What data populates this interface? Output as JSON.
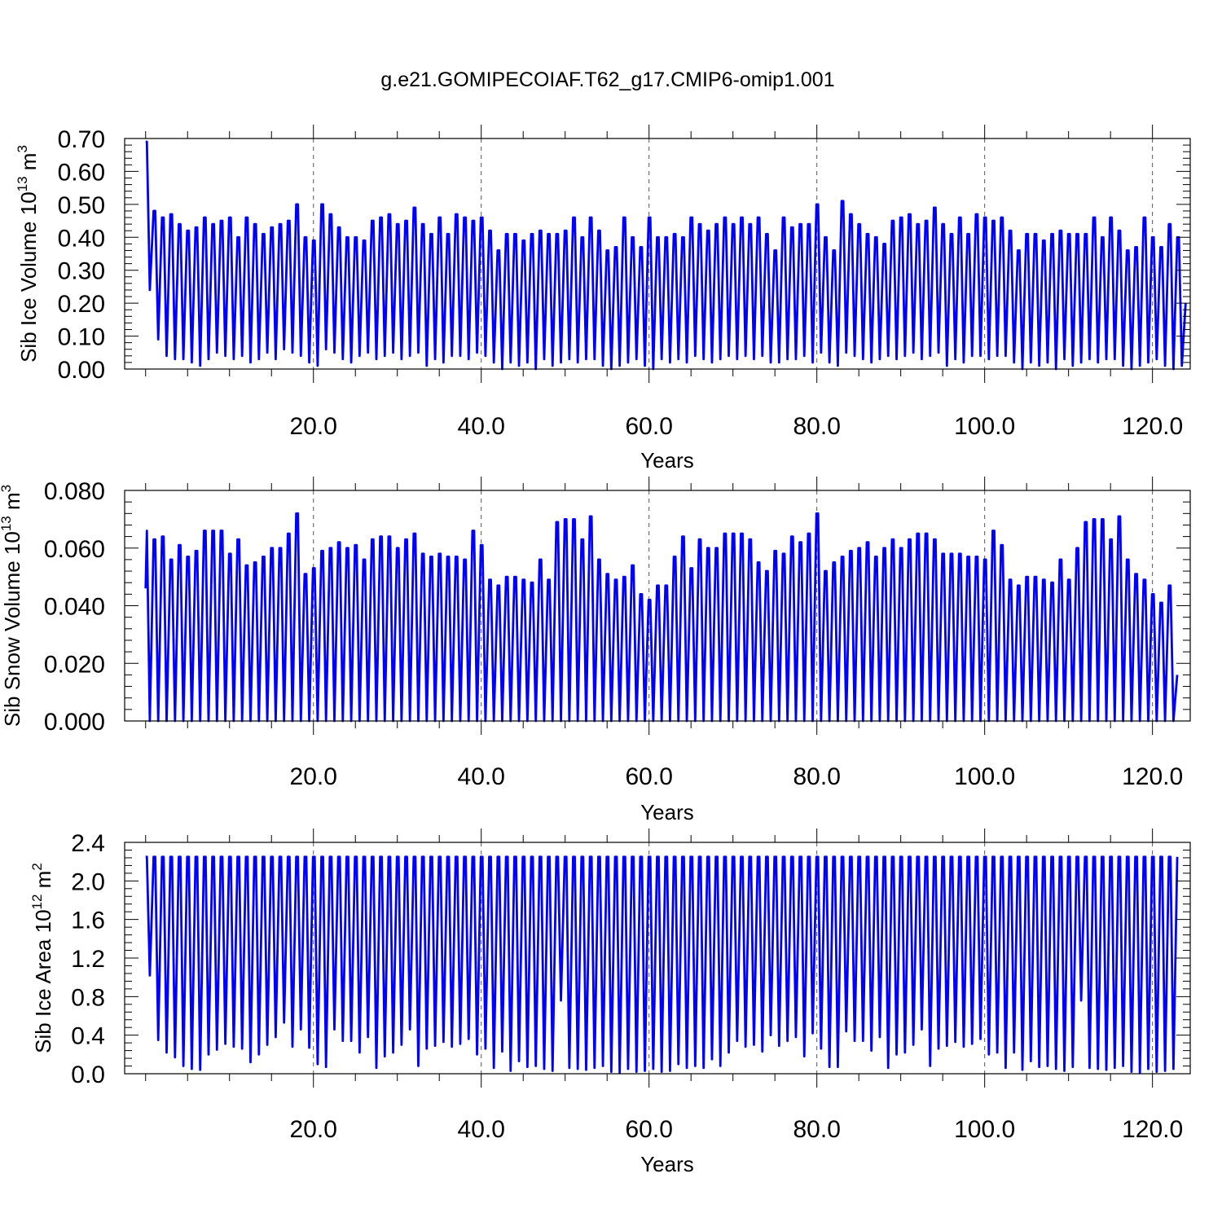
{
  "title": "g.e21.GOMIPECOIAF.T62_g17.CMIP6-omip1.001",
  "colors": {
    "series": "#0000ff",
    "grid": "#555555",
    "axis": "#000000"
  },
  "chart_data": [
    {
      "type": "line",
      "ylabel_main": "Sib Ice Volume 10",
      "ylabel_exp": "13",
      "ylabel_unit": "m",
      "ylabel_unit_exp": "3",
      "xlabel": "Years",
      "xlim": [
        -2.5,
        124.5
      ],
      "ylim": [
        0,
        0.7
      ],
      "xticks": [
        20,
        40,
        60,
        80,
        100,
        120
      ],
      "xtick_labels": [
        "20.0",
        "40.0",
        "60.0",
        "80.0",
        "100.0",
        "120.0"
      ],
      "yticks": [
        0,
        0.1,
        0.2,
        0.3,
        0.4,
        0.5,
        0.6,
        0.7
      ],
      "ytick_labels": [
        "0.00",
        "0.10",
        "0.20",
        "0.30",
        "0.40",
        "0.50",
        "0.60",
        "0.70"
      ],
      "grid": "vertical dashed at major x ticks",
      "series": [
        {
          "x_start": 0,
          "x_step": 1,
          "annual_max": [
            0.69,
            0.48,
            0.46,
            0.47,
            0.44,
            0.42,
            0.43,
            0.46,
            0.44,
            0.45,
            0.46,
            0.4,
            0.46,
            0.44,
            0.41,
            0.43,
            0.44,
            0.45,
            0.5,
            0.4,
            0.39,
            0.5,
            0.47,
            0.43,
            0.4,
            0.4,
            0.39,
            0.45,
            0.46,
            0.47,
            0.44,
            0.45,
            0.49,
            0.44,
            0.41,
            0.46,
            0.41,
            0.47,
            0.46,
            0.45,
            0.46,
            0.42,
            0.36,
            0.41,
            0.41,
            0.39,
            0.41,
            0.42,
            0.41,
            0.41,
            0.42,
            0.46,
            0.4,
            0.46,
            0.42,
            0.36,
            0.37,
            0.46,
            0.4,
            0.37,
            0.46,
            0.4,
            0.4,
            0.41,
            0.4,
            0.46,
            0.44,
            0.42,
            0.44,
            0.46,
            0.44,
            0.46,
            0.44,
            0.46,
            0.41,
            0.36,
            0.46,
            0.43,
            0.44,
            0.44,
            0.5,
            0.4,
            0.36,
            0.51,
            0.47,
            0.44,
            0.41,
            0.4,
            0.38,
            0.45,
            0.46,
            0.47,
            0.44,
            0.45,
            0.49,
            0.44,
            0.41,
            0.46,
            0.41,
            0.47,
            0.46,
            0.45,
            0.46,
            0.42,
            0.36,
            0.41,
            0.41,
            0.39,
            0.41,
            0.42,
            0.41,
            0.41,
            0.41,
            0.46,
            0.4,
            0.46,
            0.42,
            0.36,
            0.37,
            0.46,
            0.4,
            0.37,
            0.44,
            0.4
          ],
          "annual_min": [
            0.24,
            0.09,
            0.04,
            0.03,
            0.03,
            0.02,
            0.01,
            0.03,
            0.05,
            0.04,
            0.03,
            0.04,
            0.02,
            0.03,
            0.05,
            0.03,
            0.06,
            0.05,
            0.04,
            0.02,
            0.01,
            0.06,
            0.05,
            0.03,
            0.02,
            0.04,
            0.05,
            0.03,
            0.04,
            0.05,
            0.03,
            0.04,
            0.05,
            0.01,
            0.03,
            0.02,
            0.04,
            0.04,
            0.03,
            0.05,
            0.04,
            0.02,
            0.0,
            0.02,
            0.01,
            0.02,
            0.0,
            0.03,
            0.01,
            0.02,
            0.03,
            0.02,
            0.03,
            0.03,
            0.01,
            0.0,
            0.01,
            0.02,
            0.03,
            0.01,
            0.0,
            0.03,
            0.02,
            0.03,
            0.02,
            0.04,
            0.03,
            0.02,
            0.03,
            0.04,
            0.03,
            0.04,
            0.03,
            0.04,
            0.02,
            0.02,
            0.03,
            0.03,
            0.04,
            0.02,
            0.05,
            0.02,
            0.01,
            0.05,
            0.04,
            0.03,
            0.02,
            0.03,
            0.04,
            0.03,
            0.04,
            0.05,
            0.03,
            0.04,
            0.05,
            0.01,
            0.03,
            0.02,
            0.04,
            0.04,
            0.03,
            0.04,
            0.04,
            0.02,
            0.0,
            0.02,
            0.01,
            0.02,
            0.0,
            0.03,
            0.01,
            0.02,
            0.03,
            0.02,
            0.03,
            0.03,
            0.01,
            0.0,
            0.01,
            0.02,
            0.03,
            0.01,
            0.0,
            0.01
          ],
          "end_value": 0.2
        }
      ]
    },
    {
      "type": "line",
      "ylabel_main": "Sib Snow Volume 10",
      "ylabel_exp": "13",
      "ylabel_unit": "m",
      "ylabel_unit_exp": "3",
      "xlabel": "Years",
      "xlim": [
        -2.5,
        124.5
      ],
      "ylim": [
        0,
        0.08
      ],
      "xticks": [
        20,
        40,
        60,
        80,
        100,
        120
      ],
      "xtick_labels": [
        "20.0",
        "40.0",
        "60.0",
        "80.0",
        "100.0",
        "120.0"
      ],
      "yticks": [
        0,
        0.02,
        0.04,
        0.06,
        0.08
      ],
      "ytick_labels": [
        "0.000",
        "0.020",
        "0.040",
        "0.060",
        "0.080"
      ],
      "grid": "vertical dashed at major x ticks",
      "series": [
        {
          "x_start": 0,
          "x_step": 1,
          "annual_max": [
            0.066,
            0.063,
            0.064,
            0.056,
            0.061,
            0.057,
            0.059,
            0.066,
            0.066,
            0.066,
            0.058,
            0.063,
            0.054,
            0.055,
            0.057,
            0.06,
            0.06,
            0.065,
            0.072,
            0.051,
            0.053,
            0.059,
            0.06,
            0.062,
            0.06,
            0.061,
            0.056,
            0.063,
            0.064,
            0.064,
            0.06,
            0.063,
            0.065,
            0.058,
            0.057,
            0.058,
            0.057,
            0.057,
            0.056,
            0.066,
            0.061,
            0.049,
            0.047,
            0.05,
            0.05,
            0.049,
            0.048,
            0.056,
            0.049,
            0.069,
            0.07,
            0.07,
            0.063,
            0.071,
            0.056,
            0.051,
            0.049,
            0.05,
            0.054,
            0.044,
            0.042,
            0.047,
            0.047,
            0.057,
            0.064,
            0.053,
            0.063,
            0.06,
            0.06,
            0.065,
            0.065,
            0.065,
            0.063,
            0.055,
            0.052,
            0.059,
            0.058,
            0.064,
            0.062,
            0.065,
            0.072,
            0.052,
            0.055,
            0.057,
            0.059,
            0.06,
            0.062,
            0.057,
            0.06,
            0.063,
            0.06,
            0.063,
            0.065,
            0.065,
            0.063,
            0.058,
            0.058,
            0.058,
            0.057,
            0.057,
            0.056,
            0.066,
            0.061,
            0.049,
            0.047,
            0.05,
            0.05,
            0.049,
            0.048,
            0.056,
            0.049,
            0.06,
            0.069,
            0.07,
            0.07,
            0.063,
            0.071,
            0.056,
            0.051,
            0.049,
            0.044,
            0.041,
            0.047
          ],
          "annual_min": [
            0.0,
            0.0,
            0.0,
            0.0,
            0.0,
            0.0,
            0.0,
            0.0,
            0.0,
            0.0,
            0.0,
            0.0,
            0.0,
            0.0,
            0.0,
            0.0,
            0.0,
            0.0,
            0.0,
            0.0,
            0.0,
            0.0,
            0.0,
            0.0,
            0.0,
            0.0,
            0.0,
            0.0,
            0.0,
            0.0,
            0.0,
            0.0,
            0.0,
            0.0,
            0.0,
            0.0,
            0.0,
            0.0,
            0.0,
            0.0,
            0.0,
            0.0,
            0.0,
            0.0,
            0.0,
            0.0,
            0.0,
            0.0,
            0.0,
            0.0,
            0.0,
            0.0,
            0.0,
            0.0,
            0.0,
            0.0,
            0.0,
            0.0,
            0.0,
            0.0,
            0.0,
            0.0,
            0.0,
            0.0,
            0.0,
            0.0,
            0.0,
            0.0,
            0.0,
            0.0,
            0.0,
            0.0,
            0.0,
            0.0,
            0.0,
            0.0,
            0.0,
            0.0,
            0.0,
            0.0,
            0.0,
            0.0,
            0.0,
            0.0,
            0.0,
            0.0,
            0.0,
            0.0,
            0.0,
            0.0,
            0.0,
            0.0,
            0.0,
            0.0,
            0.0,
            0.0,
            0.0,
            0.0,
            0.0,
            0.0,
            0.0,
            0.0,
            0.0,
            0.0,
            0.0,
            0.0,
            0.0,
            0.0,
            0.0,
            0.0,
            0.0,
            0.0,
            0.0,
            0.0,
            0.0,
            0.0,
            0.0,
            0.0,
            0.0,
            0.0,
            0.0,
            0.0,
            0.0
          ],
          "start_value": 0.046,
          "end_value": 0.016
        }
      ]
    },
    {
      "type": "line",
      "ylabel_main": "Sib Ice Area 10",
      "ylabel_exp": "12",
      "ylabel_unit": "m",
      "ylabel_unit_exp": "2",
      "xlabel": "Years",
      "xlim": [
        -2.5,
        124.5
      ],
      "ylim": [
        0,
        2.4
      ],
      "xticks": [
        20,
        40,
        60,
        80,
        100,
        120
      ],
      "xtick_labels": [
        "20.0",
        "40.0",
        "60.0",
        "80.0",
        "100.0",
        "120.0"
      ],
      "yticks": [
        0,
        0.4,
        0.8,
        1.2,
        1.6,
        2.0,
        2.4
      ],
      "ytick_labels": [
        "0.0",
        "0.4",
        "0.8",
        "1.2",
        "1.6",
        "2.0",
        "2.4"
      ],
      "grid": "vertical dashed at major x ticks",
      "series": [
        {
          "x_start": 0,
          "x_step": 1,
          "annual_max": [
            2.25,
            2.25,
            2.25,
            2.25,
            2.25,
            2.25,
            2.25,
            2.25,
            2.25,
            2.25,
            2.25,
            2.25,
            2.25,
            2.25,
            2.25,
            2.25,
            2.25,
            2.25,
            2.25,
            2.25,
            2.25,
            2.25,
            2.25,
            2.25,
            2.25,
            2.25,
            2.25,
            2.25,
            2.25,
            2.25,
            2.25,
            2.25,
            2.25,
            2.25,
            2.25,
            2.25,
            2.25,
            2.25,
            2.25,
            2.25,
            2.25,
            2.25,
            2.25,
            2.25,
            2.25,
            2.25,
            2.25,
            2.25,
            2.25,
            2.25,
            2.25,
            2.25,
            2.25,
            2.25,
            2.25,
            2.25,
            2.25,
            2.25,
            2.25,
            2.25,
            2.25,
            2.25,
            2.25,
            2.25,
            2.25,
            2.25,
            2.25,
            2.25,
            2.25,
            2.25,
            2.25,
            2.25,
            2.25,
            2.25,
            2.25,
            2.25,
            2.25,
            2.25,
            2.25,
            2.25,
            2.25,
            2.25,
            2.25,
            2.25,
            2.25,
            2.25,
            2.25,
            2.25,
            2.25,
            2.25,
            2.25,
            2.25,
            2.25,
            2.25,
            2.25,
            2.25,
            2.25,
            2.25,
            2.25,
            2.25,
            2.25,
            2.25,
            2.25,
            2.25,
            2.25,
            2.25,
            2.25,
            2.25,
            2.25,
            2.25,
            2.25,
            2.25,
            2.25,
            2.25,
            2.25,
            2.25,
            2.25,
            2.25,
            2.25,
            2.25,
            2.25,
            2.25,
            2.25
          ],
          "annual_min": [
            1.02,
            0.35,
            0.22,
            0.17,
            0.08,
            0.05,
            0.04,
            0.2,
            0.25,
            0.31,
            0.28,
            0.26,
            0.12,
            0.2,
            0.3,
            0.38,
            0.53,
            0.28,
            0.46,
            0.27,
            0.1,
            0.07,
            0.46,
            0.34,
            0.34,
            0.22,
            0.38,
            0.06,
            0.18,
            0.22,
            0.3,
            0.46,
            0.08,
            0.26,
            0.29,
            0.33,
            0.28,
            0.31,
            0.36,
            0.2,
            0.26,
            0.06,
            0.23,
            0.03,
            0.13,
            0.07,
            0.08,
            0.05,
            0.03,
            0.76,
            0.06,
            0.05,
            0.04,
            0.06,
            0.08,
            0.02,
            0.01,
            0.05,
            0.02,
            0.03,
            0.05,
            0.02,
            0.03,
            0.1,
            0.06,
            0.08,
            0.06,
            0.15,
            0.08,
            0.22,
            0.34,
            0.28,
            0.3,
            0.23,
            0.4,
            0.29,
            0.34,
            0.38,
            0.18,
            0.42,
            0.26,
            0.07,
            0.07,
            0.44,
            0.34,
            0.34,
            0.24,
            0.38,
            0.06,
            0.2,
            0.22,
            0.3,
            0.46,
            0.08,
            0.26,
            0.29,
            0.33,
            0.28,
            0.31,
            0.36,
            0.2,
            0.22,
            0.06,
            0.22,
            0.04,
            0.13,
            0.07,
            0.08,
            0.05,
            0.03,
            0.07,
            0.76,
            0.06,
            0.05,
            0.04,
            0.06,
            0.08,
            0.02,
            0.01,
            0.05,
            0.02,
            0.03,
            0.05
          ],
          "end_value": 2.25
        }
      ]
    }
  ]
}
